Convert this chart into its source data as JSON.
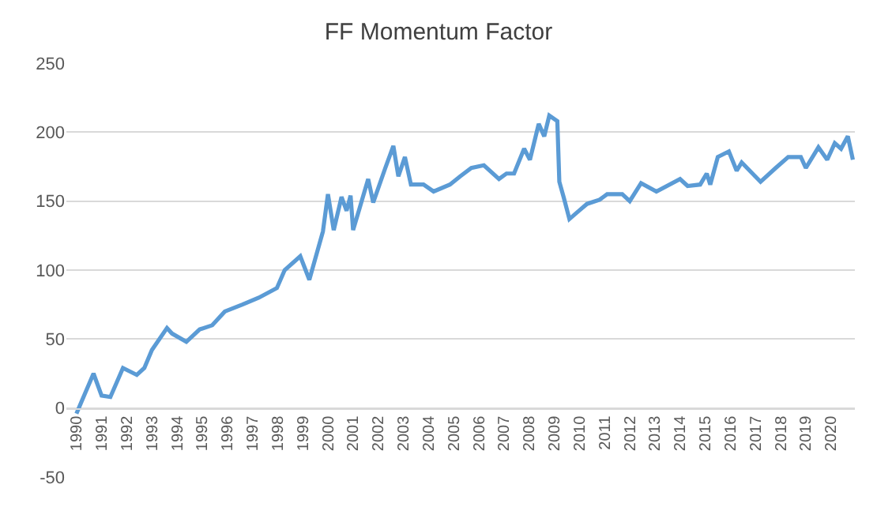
{
  "chart_data": {
    "type": "line",
    "title": "FF Momentum Factor",
    "x": [
      1990.0,
      1990.68,
      1991.0,
      1991.35,
      1991.85,
      1992.4,
      1992.7,
      1993.0,
      1993.6,
      1993.8,
      1994.37,
      1994.9,
      1995.4,
      1995.9,
      1996.6,
      1997.25,
      1997.97,
      1998.28,
      1998.9,
      1999.26,
      1999.8,
      2000.0,
      2000.23,
      2000.54,
      2000.74,
      2000.9,
      2001.0,
      2001.26,
      2001.6,
      2001.8,
      2002.28,
      2002.6,
      2002.8,
      2003.06,
      2003.3,
      2003.8,
      2004.2,
      2004.85,
      2005.26,
      2005.7,
      2006.2,
      2006.8,
      2007.1,
      2007.4,
      2007.8,
      2008.03,
      2008.38,
      2008.6,
      2008.8,
      2009.12,
      2009.2,
      2009.37,
      2009.6,
      2009.98,
      2010.3,
      2010.8,
      2011.1,
      2011.7,
      2012.0,
      2012.45,
      2013.06,
      2014.0,
      2014.3,
      2014.8,
      2015.06,
      2015.2,
      2015.5,
      2015.94,
      2016.25,
      2016.45,
      2017.2,
      2017.8,
      2018.3,
      2018.8,
      2019.0,
      2019.5,
      2019.85,
      2020.15,
      2020.4,
      2020.67,
      2020.87
    ],
    "series": [
      {
        "color": "#5b9bd5",
        "values": [
          -4,
          25,
          9,
          8,
          29,
          24,
          29,
          42,
          58,
          54,
          48,
          57,
          60,
          70,
          75,
          80,
          87,
          100,
          110,
          93,
          128,
          155,
          129,
          153,
          143,
          154,
          129,
          145,
          166,
          149,
          174,
          190,
          168,
          182,
          162,
          162,
          157,
          162,
          168,
          174,
          176,
          166,
          170,
          170,
          188,
          180,
          206,
          197,
          212,
          208,
          164,
          153,
          137,
          143,
          148,
          151,
          155,
          155,
          150,
          163,
          157,
          166,
          161,
          162,
          170,
          162,
          182,
          186,
          172,
          178,
          164,
          174,
          182,
          182,
          174,
          189,
          180,
          192,
          188,
          197,
          180
        ]
      }
    ],
    "xlim": [
      1989.6,
      2020.95
    ],
    "xticks": [
      1990,
      1991,
      1992,
      1993,
      1994,
      1995,
      1996,
      1997,
      1998,
      1999,
      2000,
      2001,
      2002,
      2003,
      2004,
      2005,
      2006,
      2007,
      2008,
      2009,
      2010,
      2011,
      2012,
      2013,
      2014,
      2015,
      2016,
      2017,
      2018,
      2019,
      2020
    ],
    "ylim": [
      -50,
      250
    ],
    "yticks": [
      -50,
      0,
      50,
      100,
      150,
      200,
      250
    ],
    "grid": "y",
    "marker": "none",
    "line_style": "solid"
  }
}
